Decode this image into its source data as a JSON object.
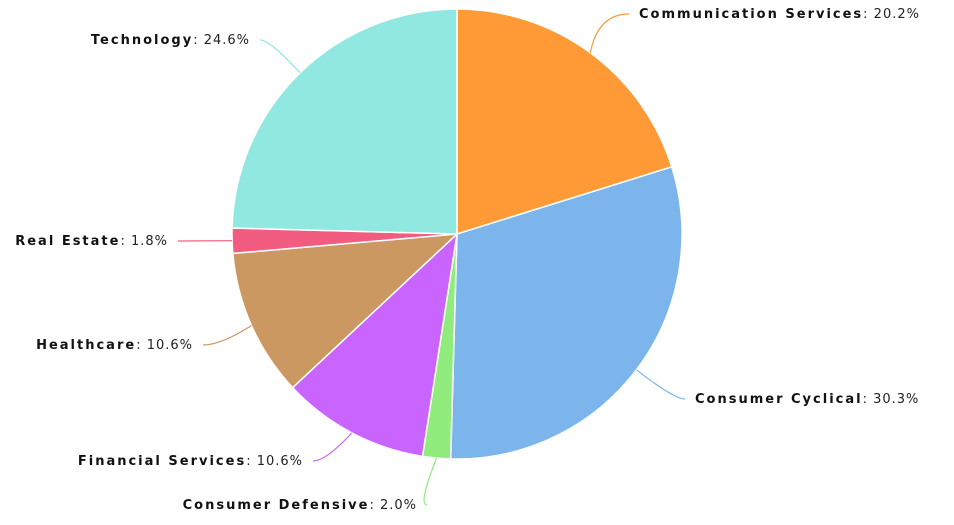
{
  "chart_data": {
    "type": "pie",
    "start_angle_deg": 0,
    "direction": "clockwise",
    "slices": [
      {
        "label": "Communication Services",
        "value": 20.2,
        "value_text": "20.2%",
        "color": "#FF9A36"
      },
      {
        "label": "Consumer Cyclical",
        "value": 30.3,
        "value_text": "30.3%",
        "color": "#7CB5EC"
      },
      {
        "label": "Consumer Defensive",
        "value": 2.0,
        "value_text": "2.0%",
        "color": "#90ED7D"
      },
      {
        "label": "Financial Services",
        "value": 10.6,
        "value_text": "10.6%",
        "color": "#C964FF"
      },
      {
        "label": "Healthcare",
        "value": 10.6,
        "value_text": "10.6%",
        "color": "#CB9862"
      },
      {
        "label": "Real Estate",
        "value": 1.8,
        "value_text": "1.8%",
        "color": "#F15C80"
      },
      {
        "label": "Technology",
        "value": 24.6,
        "value_text": "24.6%",
        "color": "#91E8E1"
      }
    ]
  }
}
